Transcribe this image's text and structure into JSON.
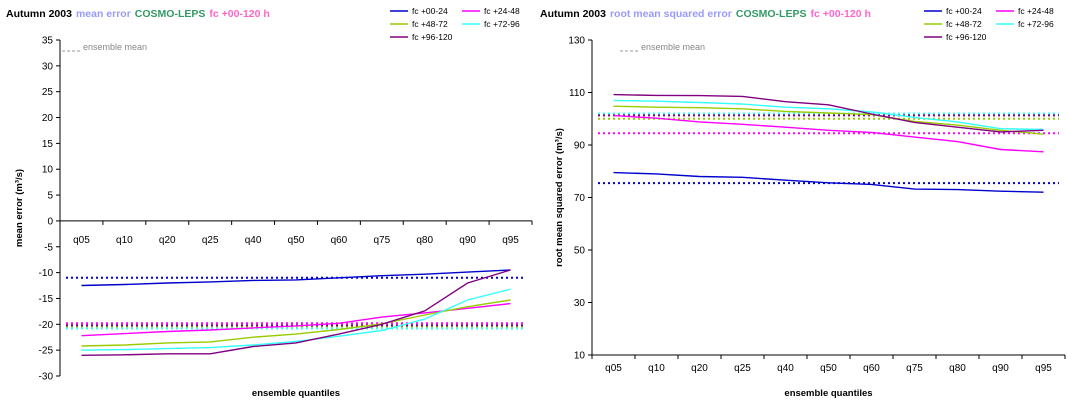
{
  "chart_data": [
    {
      "type": "line",
      "title_parts": [
        {
          "text": "Autumn 2003",
          "color": "#000000"
        },
        {
          "text": "mean error",
          "color": "#9999ff"
        },
        {
          "text": "COSMO-LEPS",
          "color": "#339966"
        },
        {
          "text": "fc +00-120 h",
          "color": "#ff66cc"
        }
      ],
      "xlabel": "ensemble quantiles",
      "ylabel": "mean error (m³/s)",
      "ylim": [
        -30,
        35
      ],
      "yticks": [
        35,
        30,
        25,
        20,
        15,
        10,
        5,
        0,
        -5,
        -10,
        -15,
        -20,
        -25,
        -30
      ],
      "categories": [
        "q05",
        "q10",
        "q20",
        "q25",
        "q40",
        "q50",
        "q60",
        "q75",
        "q80",
        "q90",
        "q95"
      ],
      "ensemble_note": "ensemble mean",
      "series": [
        {
          "name": "fc +00-24",
          "color": "#0000cc",
          "values": [
            -12.5,
            -12.3,
            -12.0,
            -11.8,
            -11.5,
            -11.4,
            -11.0,
            -10.6,
            -10.3,
            -9.9,
            -9.5
          ],
          "ensemble_mean": -11.0
        },
        {
          "name": "fc +24-48",
          "color": "#ff00ff",
          "values": [
            -22.2,
            -21.8,
            -21.4,
            -21.1,
            -20.7,
            -20.3,
            -19.8,
            -18.6,
            -17.8,
            -16.9,
            -16.0
          ],
          "ensemble_mean": -19.8
        },
        {
          "name": "fc +48-72",
          "color": "#99cc00",
          "values": [
            -24.2,
            -24.0,
            -23.6,
            -23.4,
            -22.5,
            -21.9,
            -21.0,
            -19.9,
            -18.2,
            -16.6,
            -15.3
          ],
          "ensemble_mean": -20.4
        },
        {
          "name": "fc +72-96",
          "color": "#33ffff",
          "values": [
            -25.0,
            -24.9,
            -24.7,
            -24.5,
            -24.0,
            -23.3,
            -22.3,
            -21.2,
            -19.0,
            -15.3,
            -13.2
          ],
          "ensemble_mean": -20.8
        },
        {
          "name": "fc +96-120",
          "color": "#800080",
          "values": [
            -26.0,
            -25.9,
            -25.7,
            -25.7,
            -24.3,
            -23.6,
            -21.9,
            -20.0,
            -17.4,
            -12.0,
            -9.5
          ],
          "ensemble_mean": -20.2
        }
      ]
    },
    {
      "type": "line",
      "title_parts": [
        {
          "text": "Autumn 2003",
          "color": "#000000"
        },
        {
          "text": "root mean squared error",
          "color": "#9999ff"
        },
        {
          "text": "COSMO-LEPS",
          "color": "#339966"
        },
        {
          "text": "fc +00-120 h",
          "color": "#ff66cc"
        }
      ],
      "xlabel": "ensemble quantiles",
      "ylabel": "root mean squared error (m³/s)",
      "ylim": [
        10,
        130
      ],
      "yticks": [
        130,
        110,
        90,
        70,
        50,
        30,
        10
      ],
      "categories": [
        "q05",
        "q10",
        "q20",
        "q25",
        "q40",
        "q50",
        "q60",
        "q75",
        "q80",
        "q90",
        "q95"
      ],
      "ensemble_note": "ensemble mean",
      "series": [
        {
          "name": "fc +00-24",
          "color": "#0000cc",
          "values": [
            79.5,
            79.0,
            78.0,
            77.7,
            76.6,
            75.6,
            75.0,
            73.2,
            73.0,
            72.4,
            72.0
          ],
          "ensemble_mean": 75.5
        },
        {
          "name": "fc +24-48",
          "color": "#ff00ff",
          "values": [
            101.2,
            100.2,
            98.8,
            97.9,
            96.8,
            95.6,
            94.8,
            93.0,
            91.3,
            88.3,
            87.4
          ],
          "ensemble_mean": 94.5
        },
        {
          "name": "fc +48-72",
          "color": "#99cc00",
          "values": [
            104.8,
            104.4,
            104.2,
            103.8,
            102.8,
            102.2,
            101.6,
            99.0,
            97.6,
            95.6,
            94.1
          ],
          "ensemble_mean": 100.0
        },
        {
          "name": "fc +72-96",
          "color": "#33ffff",
          "values": [
            107.0,
            106.7,
            106.2,
            105.6,
            104.4,
            103.8,
            102.6,
            100.5,
            98.8,
            96.2,
            95.9
          ],
          "ensemble_mean": 102.0
        },
        {
          "name": "fc +96-120",
          "color": "#800080",
          "values": [
            109.2,
            108.9,
            108.8,
            108.5,
            106.5,
            105.3,
            101.8,
            98.6,
            96.8,
            95.0,
            95.6
          ],
          "ensemble_mean": 101.3
        }
      ]
    }
  ]
}
